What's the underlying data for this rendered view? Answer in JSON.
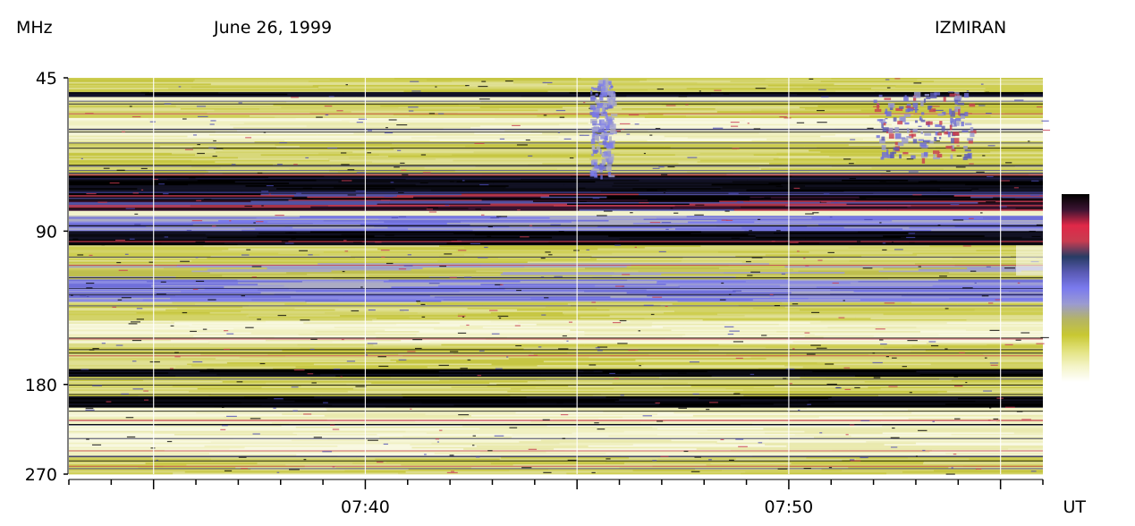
{
  "header": {
    "freq_unit": "MHz",
    "date": "June 26, 1999",
    "observatory": "IZMIRAN"
  },
  "chart_data": {
    "type": "heatmap",
    "title": "June 26, 1999",
    "source": "IZMIRAN",
    "ylabel": "MHz",
    "xlabel": "UT",
    "y_scale": "log",
    "ylim": [
      45,
      270
    ],
    "y_ticks": [
      "45",
      "90",
      "180",
      "270"
    ],
    "xlim_minutes_ut": [
      453.0,
      476.0
    ],
    "x_ticks": [
      "07:40",
      "07:50"
    ],
    "x_tick_minutes": [
      460,
      470
    ],
    "colorbar": {
      "colors_low_to_high": [
        "#ffffff",
        "#f4f4c8",
        "#e2e27e",
        "#c8c832",
        "#b4b464",
        "#9a9ad2",
        "#7a7aee",
        "#5a5ab4",
        "#283c64",
        "#c83c50",
        "#e02848",
        "#3c1432",
        "#000000"
      ]
    },
    "bands_mhz": [
      {
        "from": 45,
        "to": 48,
        "level": "yellow"
      },
      {
        "from": 48,
        "to": 49,
        "level": "black"
      },
      {
        "from": 50,
        "to": 54,
        "level": "yellow"
      },
      {
        "from": 54,
        "to": 60,
        "level": "light-yellow"
      },
      {
        "from": 60,
        "to": 70,
        "level": "yellow"
      },
      {
        "from": 70,
        "to": 76,
        "level": "black"
      },
      {
        "from": 76,
        "to": 82,
        "level": "dark-red-black"
      },
      {
        "from": 84,
        "to": 90,
        "level": "blue"
      },
      {
        "from": 90,
        "to": 96,
        "level": "black"
      },
      {
        "from": 96,
        "to": 104,
        "level": "yellow"
      },
      {
        "from": 104,
        "to": 112,
        "level": "blue-yellow"
      },
      {
        "from": 112,
        "to": 124,
        "level": "blue"
      },
      {
        "from": 124,
        "to": 135,
        "level": "yellow"
      },
      {
        "from": 135,
        "to": 150,
        "level": "light-yellow"
      },
      {
        "from": 150,
        "to": 168,
        "level": "yellow"
      },
      {
        "from": 168,
        "to": 174,
        "level": "black"
      },
      {
        "from": 174,
        "to": 190,
        "level": "yellow"
      },
      {
        "from": 190,
        "to": 200,
        "level": "black"
      },
      {
        "from": 200,
        "to": 250,
        "level": "light-yellow"
      },
      {
        "from": 250,
        "to": 270,
        "level": "yellow"
      }
    ],
    "bursts": [
      {
        "start_min": 465.3,
        "end_min": 465.8,
        "from_mhz": 45,
        "to_mhz": 70,
        "level": "blue"
      },
      {
        "start_min": 472.0,
        "end_min": 474.3,
        "from_mhz": 48,
        "to_mhz": 65,
        "level": "blue-red"
      }
    ]
  }
}
